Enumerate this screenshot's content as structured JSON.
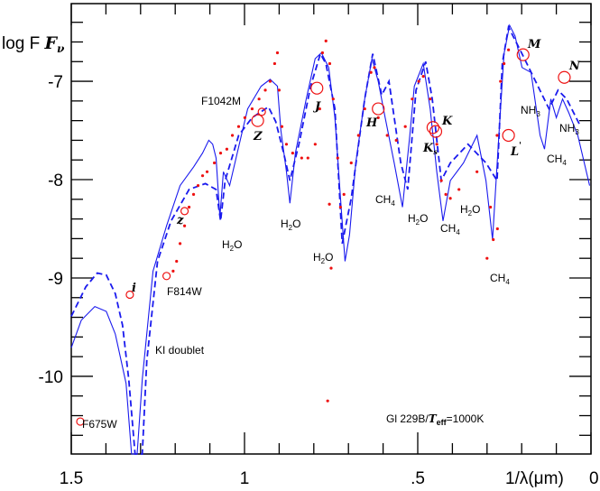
{
  "chart_data": {
    "type": "scatter",
    "ylabel": "log F",
    "ylabel_subscript": "ν",
    "xlabel": "1/λ(μm)",
    "xlim": [
      1.5,
      0
    ],
    "ylim": [
      -10.79,
      -6.21
    ],
    "x_reversed": true,
    "x_ticks": [
      {
        "v": 1.5,
        "label": "1.5"
      },
      {
        "v": 1,
        "label": "1"
      },
      {
        "v": 0.5,
        "label": ".5"
      },
      {
        "v": 0,
        "label": "0"
      }
    ],
    "y_ticks": [
      {
        "v": -7,
        "label": "-7"
      },
      {
        "v": -8,
        "label": "-8"
      },
      {
        "v": -9,
        "label": "-9"
      },
      {
        "v": -10,
        "label": "-10"
      }
    ],
    "grid": false,
    "colors": {
      "model": "#1a1aee",
      "observed": "#ee1111",
      "axes": "#000000"
    },
    "series": [
      {
        "style": "solid-line",
        "points": [
          [
            1.5,
            -9.71
          ],
          [
            1.471,
            -9.43
          ],
          [
            1.432,
            -9.29
          ],
          [
            1.399,
            -9.34
          ],
          [
            1.373,
            -9.57
          ],
          [
            1.342,
            -10.07
          ],
          [
            1.326,
            -10.79
          ],
          [
            1.31,
            -10.79
          ],
          [
            1.295,
            -10.03
          ],
          [
            1.264,
            -8.93
          ],
          [
            1.225,
            -8.47
          ],
          [
            1.186,
            -8.06
          ],
          [
            1.147,
            -7.87
          ],
          [
            1.121,
            -7.73
          ],
          [
            1.103,
            -7.6
          ],
          [
            1.092,
            -7.64
          ],
          [
            1.082,
            -7.78
          ],
          [
            1.071,
            -8.38
          ],
          [
            1.061,
            -7.92
          ],
          [
            1.043,
            -8.06
          ],
          [
            1.009,
            -7.55
          ],
          [
            0.991,
            -7.28
          ],
          [
            0.952,
            -7.05
          ],
          [
            0.926,
            -6.98
          ],
          [
            0.905,
            -7.05
          ],
          [
            0.895,
            -7.5
          ],
          [
            0.879,
            -7.92
          ],
          [
            0.869,
            -8.24
          ],
          [
            0.853,
            -7.73
          ],
          [
            0.822,
            -7.18
          ],
          [
            0.796,
            -6.77
          ],
          [
            0.778,
            -6.71
          ],
          [
            0.757,
            -6.86
          ],
          [
            0.739,
            -7.37
          ],
          [
            0.723,
            -8.19
          ],
          [
            0.71,
            -8.83
          ],
          [
            0.697,
            -8.56
          ],
          [
            0.679,
            -7.83
          ],
          [
            0.653,
            -7.18
          ],
          [
            0.632,
            -6.77
          ],
          [
            0.614,
            -7.0
          ],
          [
            0.594,
            -7.37
          ],
          [
            0.568,
            -7.83
          ],
          [
            0.544,
            -8.28
          ],
          [
            0.523,
            -7.55
          ],
          [
            0.51,
            -7.05
          ],
          [
            0.484,
            -6.82
          ],
          [
            0.464,
            -7.28
          ],
          [
            0.445,
            -7.92
          ],
          [
            0.427,
            -8.42
          ],
          [
            0.406,
            -8.01
          ],
          [
            0.368,
            -7.83
          ],
          [
            0.329,
            -7.55
          ],
          [
            0.303,
            -8.01
          ],
          [
            0.284,
            -8.61
          ],
          [
            0.269,
            -7.73
          ],
          [
            0.251,
            -6.72
          ],
          [
            0.235,
            -6.43
          ],
          [
            0.219,
            -6.54
          ],
          [
            0.199,
            -6.86
          ],
          [
            0.173,
            -6.91
          ],
          [
            0.147,
            -7.55
          ],
          [
            0.134,
            -7.69
          ],
          [
            0.116,
            -7.18
          ],
          [
            0.1,
            -7.37
          ],
          [
            0.082,
            -7.18
          ],
          [
            0.064,
            -7.32
          ],
          [
            0.038,
            -7.55
          ],
          [
            0.004,
            -8.06
          ]
        ]
      },
      {
        "style": "dashed-line",
        "points": [
          [
            1.5,
            -9.39
          ],
          [
            1.458,
            -9.09
          ],
          [
            1.425,
            -8.95
          ],
          [
            1.399,
            -8.97
          ],
          [
            1.373,
            -9.16
          ],
          [
            1.352,
            -9.48
          ],
          [
            1.334,
            -10.03
          ],
          [
            1.316,
            -10.79
          ],
          [
            1.295,
            -10.79
          ],
          [
            1.282,
            -9.84
          ],
          [
            1.251,
            -8.83
          ],
          [
            1.212,
            -8.42
          ],
          [
            1.16,
            -8.1
          ],
          [
            1.113,
            -8.04
          ],
          [
            1.082,
            -8.1
          ],
          [
            1.069,
            -8.42
          ],
          [
            1.056,
            -8.01
          ],
          [
            1.017,
            -7.55
          ],
          [
            0.978,
            -7.37
          ],
          [
            0.931,
            -7.26
          ],
          [
            0.91,
            -7.41
          ],
          [
            0.887,
            -7.73
          ],
          [
            0.869,
            -8.01
          ],
          [
            0.843,
            -7.64
          ],
          [
            0.809,
            -7.05
          ],
          [
            0.781,
            -6.72
          ],
          [
            0.765,
            -6.82
          ],
          [
            0.739,
            -7.28
          ],
          [
            0.718,
            -8.65
          ],
          [
            0.692,
            -8.19
          ],
          [
            0.653,
            -7.18
          ],
          [
            0.63,
            -6.72
          ],
          [
            0.604,
            -7.14
          ],
          [
            0.583,
            -7.0
          ],
          [
            0.549,
            -7.83
          ],
          [
            0.529,
            -8.1
          ],
          [
            0.505,
            -7.09
          ],
          [
            0.477,
            -6.8
          ],
          [
            0.458,
            -7.18
          ],
          [
            0.432,
            -8.01
          ],
          [
            0.406,
            -7.83
          ],
          [
            0.355,
            -7.64
          ],
          [
            0.303,
            -7.83
          ],
          [
            0.271,
            -8.01
          ],
          [
            0.256,
            -6.82
          ],
          [
            0.238,
            -6.45
          ],
          [
            0.199,
            -6.72
          ],
          [
            0.16,
            -7.0
          ],
          [
            0.121,
            -7.28
          ],
          [
            0.095,
            -7.09
          ],
          [
            0.07,
            -7.18
          ],
          [
            0.03,
            -7.46
          ]
        ]
      },
      {
        "style": "observed-points",
        "points": [
          [
            1.206,
            -8.93
          ],
          [
            1.196,
            -8.83
          ],
          [
            1.186,
            -8.65
          ],
          [
            1.173,
            -8.47
          ],
          [
            1.16,
            -8.28
          ],
          [
            1.147,
            -8.15
          ],
          [
            1.134,
            -8.06
          ],
          [
            1.121,
            -7.96
          ],
          [
            1.108,
            -7.92
          ],
          [
            1.087,
            -7.83
          ],
          [
            1.069,
            -7.73
          ],
          [
            1.051,
            -7.69
          ],
          [
            1.035,
            -7.55
          ],
          [
            1.017,
            -7.46
          ],
          [
            0.999,
            -7.37
          ],
          [
            0.978,
            -7.28
          ],
          [
            0.958,
            -7.18
          ],
          [
            0.94,
            -7.09
          ],
          [
            0.926,
            -7.0
          ],
          [
            0.913,
            -6.82
          ],
          [
            0.905,
            -6.71
          ],
          [
            0.9,
            -7.09
          ],
          [
            0.892,
            -7.46
          ],
          [
            0.879,
            -7.64
          ],
          [
            0.861,
            -7.73
          ],
          [
            0.835,
            -7.78
          ],
          [
            0.817,
            -7.78
          ],
          [
            0.796,
            -7.64
          ],
          [
            0.783,
            -7.28
          ],
          [
            0.775,
            -6.71
          ],
          [
            0.765,
            -6.59
          ],
          [
            0.754,
            -6.82
          ],
          [
            0.744,
            -7.18
          ],
          [
            0.731,
            -7.78
          ],
          [
            0.723,
            -8.28
          ],
          [
            0.713,
            -8.15
          ],
          [
            0.692,
            -7.83
          ],
          [
            0.671,
            -7.55
          ],
          [
            0.653,
            -7.28
          ],
          [
            0.635,
            -6.91
          ],
          [
            0.625,
            -6.86
          ],
          [
            0.614,
            -7.37
          ],
          [
            0.588,
            -7.55
          ],
          [
            0.562,
            -7.6
          ],
          [
            0.536,
            -7.46
          ],
          [
            0.516,
            -7.18
          ],
          [
            0.497,
            -7.0
          ],
          [
            0.484,
            -6.95
          ],
          [
            0.464,
            -7.18
          ],
          [
            0.445,
            -7.64
          ],
          [
            0.432,
            -8.01
          ],
          [
            0.419,
            -8.15
          ],
          [
            0.406,
            -8.19
          ],
          [
            0.381,
            -8.1
          ],
          [
            0.329,
            -7.92
          ],
          [
            0.29,
            -8.28
          ],
          [
            0.282,
            -8.61
          ],
          [
            0.271,
            -7.55
          ],
          [
            0.261,
            -7.0
          ],
          [
            0.251,
            -6.82
          ],
          [
            0.238,
            -6.68
          ],
          [
            0.76,
            -10.25
          ],
          [
            0.755,
            -8.25
          ],
          [
            0.75,
            -8.9
          ],
          [
            0.3,
            -8.8
          ],
          [
            0.27,
            -8.5
          ]
        ]
      }
    ],
    "photometry": [
      {
        "band": "F675W",
        "x": 1.474,
        "y": -10.46
      },
      {
        "band": "i",
        "x": 1.331,
        "y": -9.17
      },
      {
        "band": "F814W",
        "x": 1.225,
        "y": -8.98
      },
      {
        "band": "z",
        "x": 1.173,
        "y": -8.32
      },
      {
        "band": "Z",
        "x": 0.962,
        "y": -7.4
      },
      {
        "band": "F1042M",
        "x": 0.95,
        "y": -7.31
      },
      {
        "band": "J",
        "x": 0.791,
        "y": -7.07
      },
      {
        "band": "H",
        "x": 0.614,
        "y": -7.28
      },
      {
        "band": "K",
        "x": 0.456,
        "y": -7.47
      },
      {
        "band": "Ks",
        "x": 0.448,
        "y": -7.51
      },
      {
        "band": "L'",
        "x": 0.238,
        "y": -7.55
      },
      {
        "band": "M",
        "x": 0.196,
        "y": -6.73
      },
      {
        "band": "N",
        "x": 0.077,
        "y": -6.96
      }
    ],
    "annotations": {
      "F1042M": "F1042M",
      "Z": "Z",
      "z": "z",
      "i": "i",
      "F814W": "F814W",
      "F675W": "F675W",
      "J": "J",
      "H": "H",
      "K": "K",
      "Ks": "K",
      "Ks_sub": "s",
      "L": "L",
      "L_prime": "'",
      "M": "M",
      "N": "N",
      "KI": "KI doublet",
      "h2o_1": "H",
      "h2o_2": "H",
      "h2o_3": "H",
      "h2o_4": "H",
      "h2o_5": "H",
      "ch4_1": "CH",
      "ch4_2": "CH",
      "ch4_3": "CH",
      "ch4_4": "CH",
      "nh3_1": "NH",
      "nh3_2": "NH",
      "title_main": "Gl  229B/",
      "title_T": "T",
      "title_sub": "eff",
      "title_val": "=1000K"
    }
  }
}
